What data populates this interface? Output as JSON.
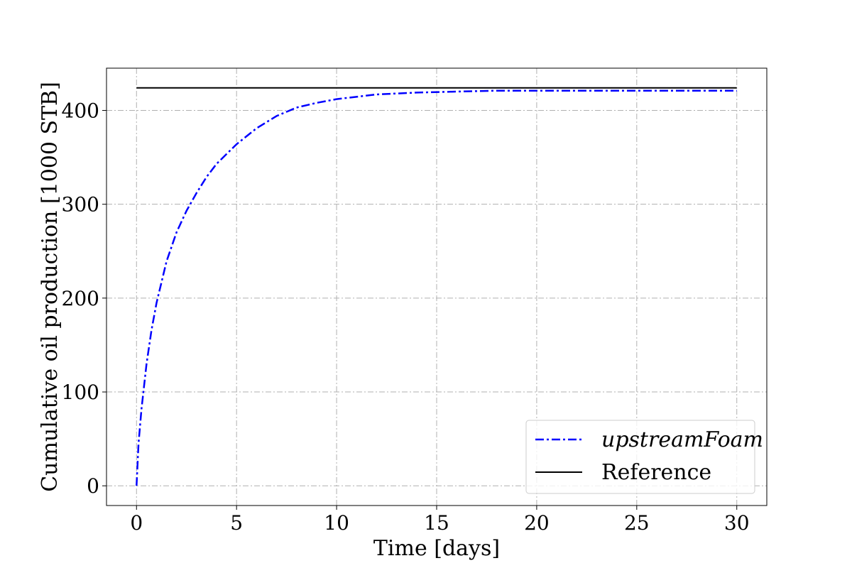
{
  "chart_data": {
    "type": "line",
    "xlabel": "Time [days]",
    "ylabel": "Cumulative oil production [1000 STB]",
    "xlim": [
      -1.5,
      31.5
    ],
    "ylim": [
      -21,
      445
    ],
    "xticks": [
      0,
      5,
      10,
      15,
      20,
      25,
      30
    ],
    "yticks": [
      0,
      100,
      200,
      300,
      400
    ],
    "grid": true,
    "legend_position": "lower-right",
    "series": [
      {
        "name": "upstreamFoam",
        "color": "#0000ff",
        "style": "dashdot",
        "x": [
          0,
          0.1,
          0.25,
          0.5,
          0.75,
          1,
          1.5,
          2,
          2.5,
          3,
          3.5,
          4,
          5,
          6,
          7,
          8,
          9,
          10,
          12,
          14,
          16,
          18,
          20,
          25,
          30
        ],
        "y": [
          0,
          45,
          82,
          130,
          166,
          195,
          239,
          270,
          293,
          312,
          329,
          343,
          364,
          381,
          394,
          403,
          408,
          412,
          417,
          419,
          420,
          421,
          421,
          421,
          421
        ]
      },
      {
        "name": "Reference",
        "color": "#000000",
        "style": "solid",
        "x": [
          0,
          30
        ],
        "y": [
          424,
          424
        ]
      }
    ]
  }
}
